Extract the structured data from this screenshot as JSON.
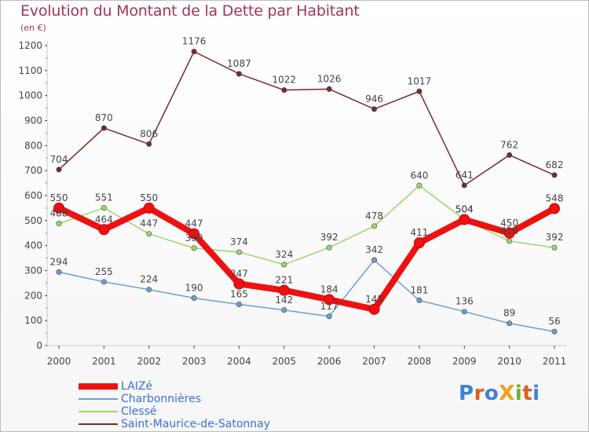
{
  "header": {
    "title": "Evolution du Montant de la Dette par Habitant",
    "subtitle": "(en €)"
  },
  "logo": {
    "text": "Proxiti",
    "letters": [
      {
        "ch": "P",
        "color": "#3a82d6"
      },
      {
        "ch": "r",
        "color": "#e25a1c"
      },
      {
        "ch": "o",
        "color": "#3a82d6"
      },
      {
        "ch": "X",
        "color": "#f0a11a"
      },
      {
        "ch": "i",
        "color": "#6bb02e"
      },
      {
        "ch": "t",
        "color": "#e25a1c"
      },
      {
        "ch": "i",
        "color": "#3a82d6"
      }
    ]
  },
  "chart_data": {
    "type": "line",
    "title": "Evolution du Montant de la Dette par Habitant",
    "subtitle": "(en €)",
    "x": [
      "2000",
      "2001",
      "2002",
      "2003",
      "2004",
      "2005",
      "2006",
      "2007",
      "2008",
      "2009",
      "2010",
      "2011"
    ],
    "ylim": [
      0,
      1200
    ],
    "yticks": [
      0,
      100,
      200,
      300,
      400,
      500,
      600,
      700,
      800,
      900,
      1000,
      1100,
      1200
    ],
    "grid": false,
    "legend_position": "bottom-left",
    "series": [
      {
        "name": "LAIZé",
        "color": "#ee1111",
        "emphasis": true,
        "values": [
          550,
          464,
          550,
          447,
          247,
          221,
          184,
          145,
          411,
          504,
          450,
          548
        ]
      },
      {
        "name": "Charbonnières",
        "color": "#6d9fcf",
        "emphasis": false,
        "values": [
          294,
          255,
          224,
          190,
          165,
          142,
          117,
          342,
          181,
          136,
          89,
          56
        ]
      },
      {
        "name": "Clessé",
        "color": "#9ad66a",
        "emphasis": false,
        "values": [
          488,
          551,
          447,
          390,
          374,
          324,
          392,
          478,
          640,
          504,
          418,
          392
        ]
      },
      {
        "name": "Saint-Maurice-de-Satonnay",
        "color": "#7a2a2a",
        "emphasis": false,
        "values": [
          704,
          870,
          806,
          1176,
          1087,
          1022,
          1026,
          946,
          1017,
          641,
          762,
          682
        ]
      }
    ]
  }
}
